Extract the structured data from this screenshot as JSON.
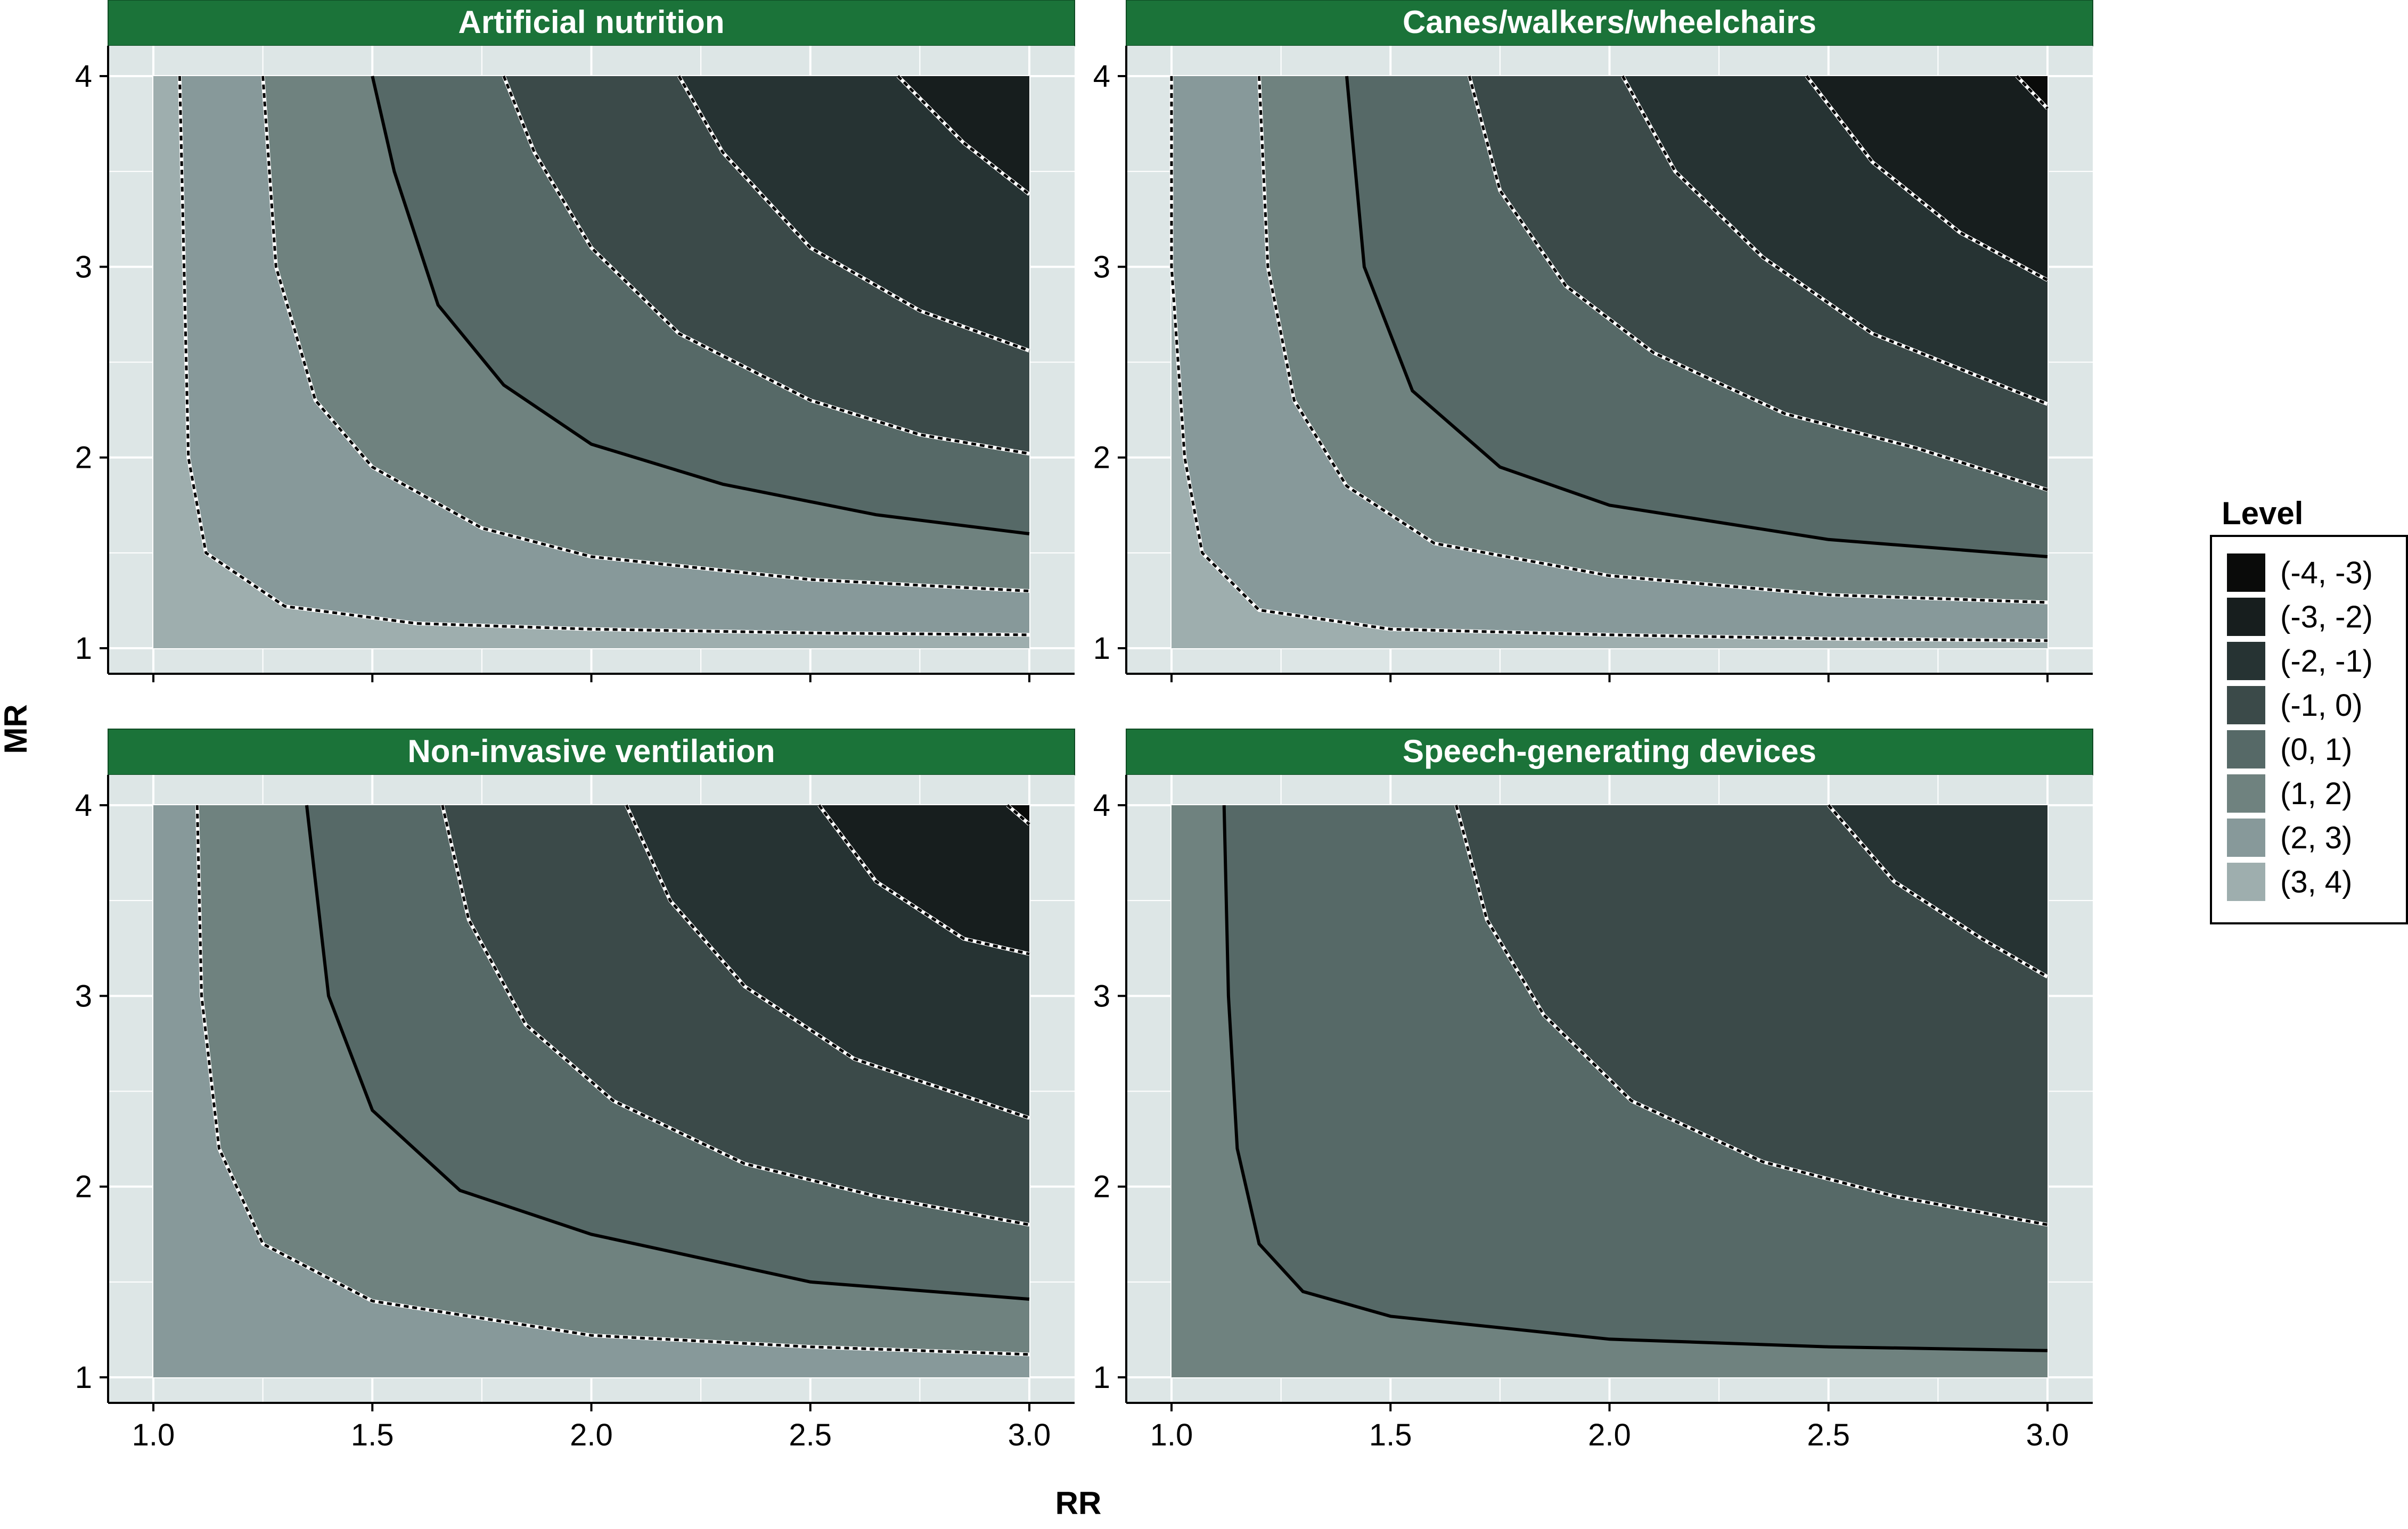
{
  "chart_data": {
    "type": "contour",
    "xlabel": "RR",
    "ylabel": "MR",
    "xlim": [
      1.0,
      3.0
    ],
    "ylim": [
      1,
      4
    ],
    "x_ticks": [
      "1.0",
      "1.5",
      "2.0",
      "2.5",
      "3.0"
    ],
    "y_ticks": [
      "1",
      "2",
      "3",
      "4"
    ],
    "legend": {
      "title": "Level",
      "position": "right",
      "levels": [
        "(-4, -3)",
        "(-3, -2)",
        "(-2, -1)",
        "(-1, 0)",
        "(0, 1)",
        "(1, 2)",
        "(2, 3)",
        "(3, 4)"
      ],
      "colors": [
        "#0a0b0a",
        "#171e1e",
        "#263333",
        "#3b4a49",
        "#566967",
        "#6f827f",
        "#87999a",
        "#9eaeae"
      ]
    },
    "panels": [
      {
        "title": "Artificial nutrition",
        "contour_lines": [
          {
            "level": 3,
            "points": [
              [
                1.06,
                4.0
              ],
              [
                1.07,
                3.0
              ],
              [
                1.08,
                2.0
              ],
              [
                1.12,
                1.5
              ],
              [
                1.3,
                1.22
              ],
              [
                1.6,
                1.13
              ],
              [
                2.0,
                1.1
              ],
              [
                2.5,
                1.08
              ],
              [
                3.0,
                1.07
              ]
            ]
          },
          {
            "level": 2,
            "points": [
              [
                1.25,
                4.0
              ],
              [
                1.28,
                3.0
              ],
              [
                1.37,
                2.3
              ],
              [
                1.5,
                1.95
              ],
              [
                1.75,
                1.63
              ],
              [
                2.0,
                1.48
              ],
              [
                2.5,
                1.36
              ],
              [
                3.0,
                1.3
              ]
            ]
          },
          {
            "level": 1,
            "points": [
              [
                1.5,
                4.0
              ],
              [
                1.55,
                3.5
              ],
              [
                1.65,
                2.8
              ],
              [
                1.8,
                2.38
              ],
              [
                2.0,
                2.07
              ],
              [
                2.3,
                1.86
              ],
              [
                2.65,
                1.7
              ],
              [
                3.0,
                1.6
              ]
            ]
          },
          {
            "level": 0,
            "points": [
              [
                1.8,
                4.0
              ],
              [
                1.87,
                3.6
              ],
              [
                2.0,
                3.1
              ],
              [
                2.2,
                2.65
              ],
              [
                2.5,
                2.3
              ],
              [
                2.75,
                2.12
              ],
              [
                3.0,
                2.02
              ]
            ]
          },
          {
            "level": -1,
            "points": [
              [
                2.2,
                4.0
              ],
              [
                2.3,
                3.6
              ],
              [
                2.5,
                3.1
              ],
              [
                2.75,
                2.77
              ],
              [
                3.0,
                2.56
              ]
            ]
          },
          {
            "level": -2,
            "points": [
              [
                2.7,
                4.0
              ],
              [
                2.85,
                3.65
              ],
              [
                3.0,
                3.38
              ]
            ]
          }
        ]
      },
      {
        "title": "Canes/walkers/wheelchairs",
        "contour_lines": [
          {
            "level": 3,
            "points": [
              [
                1.0,
                4.0
              ],
              [
                1.0,
                3.0
              ],
              [
                1.03,
                2.0
              ],
              [
                1.07,
                1.5
              ],
              [
                1.2,
                1.2
              ],
              [
                1.5,
                1.1
              ],
              [
                2.0,
                1.07
              ],
              [
                2.5,
                1.05
              ],
              [
                3.0,
                1.04
              ]
            ]
          },
          {
            "level": 2,
            "points": [
              [
                1.2,
                4.0
              ],
              [
                1.22,
                3.0
              ],
              [
                1.28,
                2.3
              ],
              [
                1.4,
                1.85
              ],
              [
                1.6,
                1.55
              ],
              [
                2.0,
                1.38
              ],
              [
                2.5,
                1.28
              ],
              [
                3.0,
                1.24
              ]
            ]
          },
          {
            "level": 1,
            "points": [
              [
                1.4,
                4.0
              ],
              [
                1.44,
                3.0
              ],
              [
                1.55,
                2.35
              ],
              [
                1.75,
                1.95
              ],
              [
                2.0,
                1.75
              ],
              [
                2.5,
                1.57
              ],
              [
                3.0,
                1.48
              ]
            ]
          },
          {
            "level": 0,
            "points": [
              [
                1.68,
                4.0
              ],
              [
                1.75,
                3.4
              ],
              [
                1.9,
                2.9
              ],
              [
                2.1,
                2.55
              ],
              [
                2.4,
                2.23
              ],
              [
                2.7,
                2.05
              ],
              [
                3.0,
                1.83
              ]
            ]
          },
          {
            "level": -1,
            "points": [
              [
                2.03,
                4.0
              ],
              [
                2.15,
                3.5
              ],
              [
                2.35,
                3.05
              ],
              [
                2.6,
                2.65
              ],
              [
                3.0,
                2.28
              ]
            ]
          },
          {
            "level": -2,
            "points": [
              [
                2.45,
                4.0
              ],
              [
                2.6,
                3.55
              ],
              [
                2.8,
                3.18
              ],
              [
                3.0,
                2.93
              ]
            ]
          },
          {
            "level": -3,
            "points": [
              [
                2.93,
                4.0
              ],
              [
                3.0,
                3.83
              ]
            ]
          }
        ]
      },
      {
        "title": "Non-invasive ventilation",
        "contour_lines": [
          {
            "level": 2,
            "points": [
              [
                1.1,
                4.0
              ],
              [
                1.11,
                3.0
              ],
              [
                1.15,
                2.2
              ],
              [
                1.25,
                1.7
              ],
              [
                1.5,
                1.4
              ],
              [
                2.0,
                1.22
              ],
              [
                2.5,
                1.16
              ],
              [
                3.0,
                1.12
              ]
            ]
          },
          {
            "level": 1,
            "points": [
              [
                1.35,
                4.0
              ],
              [
                1.4,
                3.0
              ],
              [
                1.5,
                2.4
              ],
              [
                1.7,
                1.98
              ],
              [
                2.0,
                1.75
              ],
              [
                2.5,
                1.5
              ],
              [
                3.0,
                1.41
              ]
            ]
          },
          {
            "level": 0,
            "points": [
              [
                1.66,
                4.0
              ],
              [
                1.72,
                3.4
              ],
              [
                1.85,
                2.85
              ],
              [
                2.05,
                2.45
              ],
              [
                2.35,
                2.12
              ],
              [
                2.65,
                1.95
              ],
              [
                3.0,
                1.8
              ]
            ]
          },
          {
            "level": -1,
            "points": [
              [
                2.08,
                4.0
              ],
              [
                2.18,
                3.5
              ],
              [
                2.35,
                3.05
              ],
              [
                2.6,
                2.67
              ],
              [
                3.0,
                2.36
              ]
            ]
          },
          {
            "level": -2,
            "points": [
              [
                2.52,
                4.0
              ],
              [
                2.65,
                3.6
              ],
              [
                2.85,
                3.3
              ],
              [
                3.0,
                3.22
              ]
            ]
          },
          {
            "level": -3,
            "points": [
              [
                2.95,
                4.0
              ],
              [
                3.0,
                3.9
              ]
            ]
          }
        ]
      },
      {
        "title": "Speech-generating devices",
        "contour_lines": [
          {
            "level": 1,
            "points": [
              [
                1.12,
                4.0
              ],
              [
                1.13,
                3.0
              ],
              [
                1.15,
                2.2
              ],
              [
                1.2,
                1.7
              ],
              [
                1.3,
                1.45
              ],
              [
                1.5,
                1.32
              ],
              [
                2.0,
                1.2
              ],
              [
                2.5,
                1.16
              ],
              [
                3.0,
                1.14
              ]
            ]
          },
          {
            "level": 0,
            "points": [
              [
                1.65,
                4.0
              ],
              [
                1.72,
                3.4
              ],
              [
                1.85,
                2.9
              ],
              [
                2.05,
                2.45
              ],
              [
                2.35,
                2.13
              ],
              [
                2.65,
                1.95
              ],
              [
                3.0,
                1.8
              ]
            ]
          },
          {
            "level": -1,
            "points": [
              [
                2.5,
                4.0
              ],
              [
                2.65,
                3.6
              ],
              [
                2.85,
                3.3
              ],
              [
                3.0,
                3.1
              ]
            ]
          }
        ]
      }
    ]
  }
}
